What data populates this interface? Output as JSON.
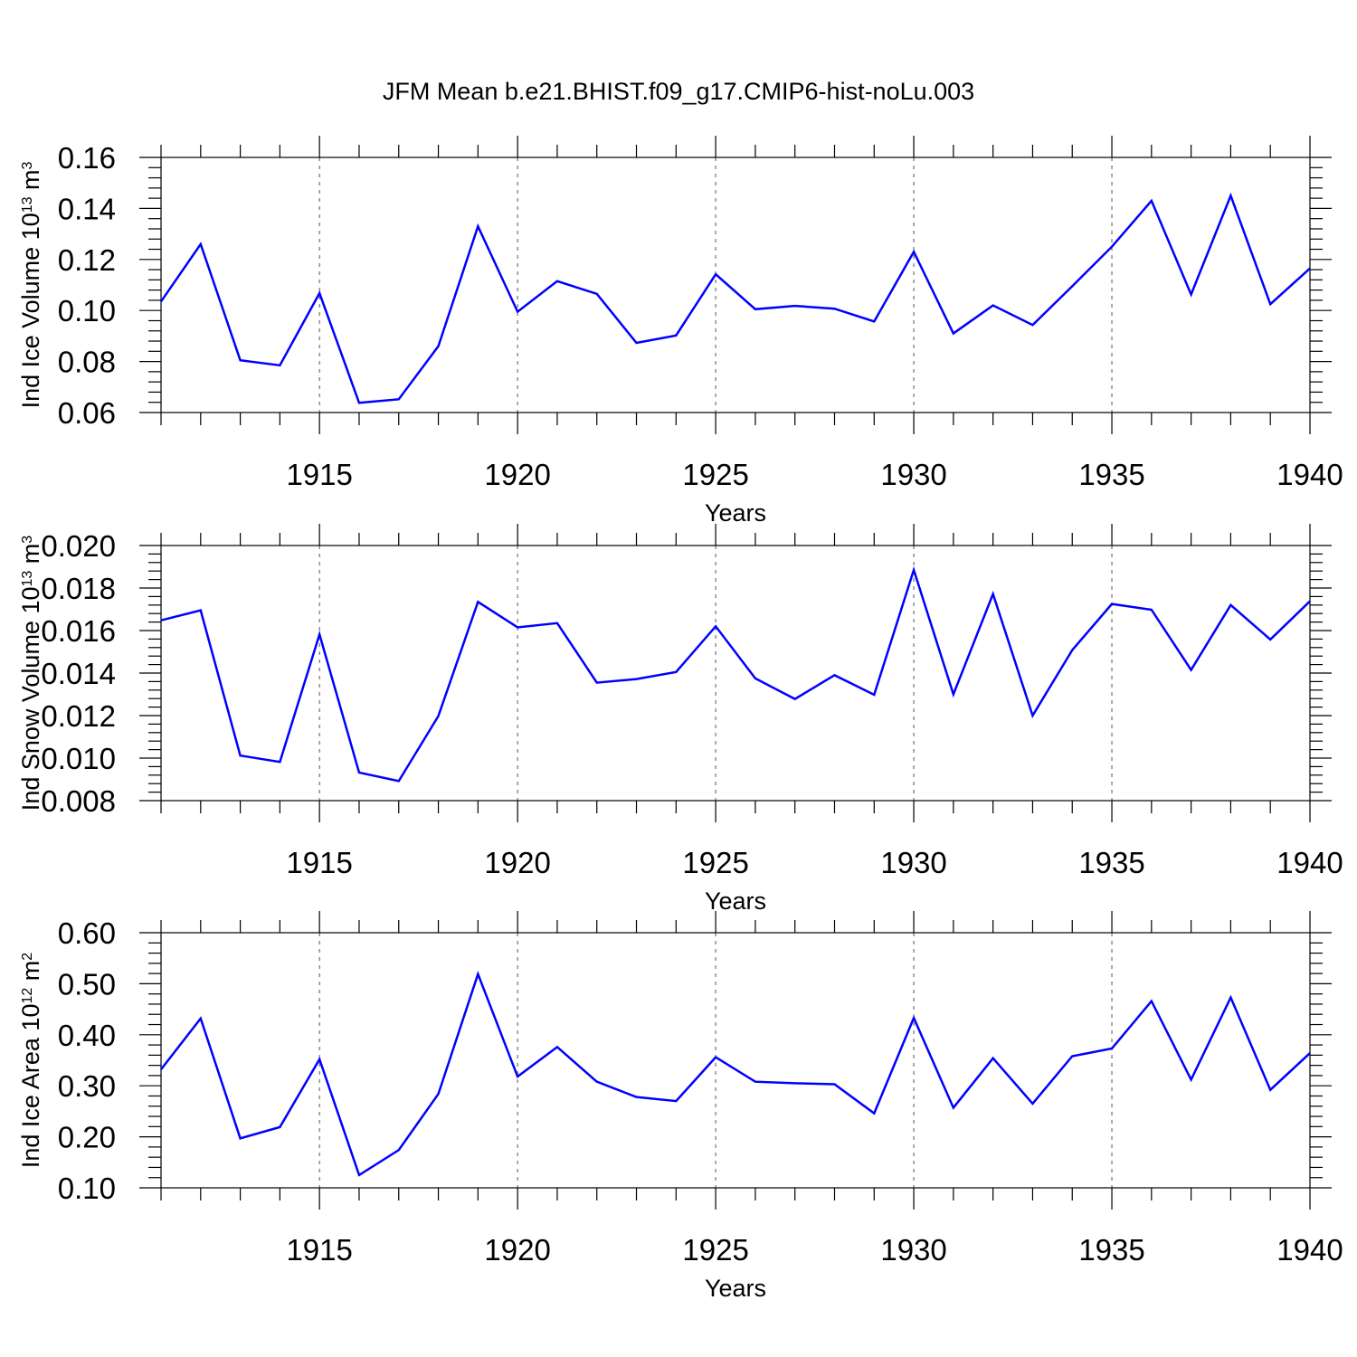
{
  "title": "JFM Mean b.e21.BHIST.f09_g17.CMIP6-hist-noLu.003",
  "colors": {
    "line": "#0000ff",
    "axis": "#000000",
    "grid": "#555555"
  },
  "chart_data": [
    {
      "type": "line",
      "ylabel": "Ind Ice Volume 10",
      "ylabel_exp": "13",
      "ylabel_unit": " m",
      "ylabel_unit_exp": "3",
      "xlabel": "Years",
      "xlim": [
        1911,
        1940
      ],
      "ylim": [
        0.06,
        0.16
      ],
      "yticks": [
        0.06,
        0.08,
        0.1,
        0.12,
        0.14,
        0.16
      ],
      "ytick_labels": [
        "0.06",
        "0.08",
        "0.10",
        "0.12",
        "0.14",
        "0.16"
      ],
      "xticks": [
        1915,
        1920,
        1925,
        1930,
        1935,
        1940
      ],
      "xtick_labels": [
        "1915",
        "1920",
        "1925",
        "1930",
        "1935",
        "1940"
      ],
      "grid_x": true,
      "x": [
        1911,
        1912,
        1913,
        1914,
        1915,
        1916,
        1917,
        1918,
        1919,
        1920,
        1921,
        1922,
        1923,
        1924,
        1925,
        1926,
        1927,
        1928,
        1929,
        1930,
        1931,
        1932,
        1933,
        1934,
        1935,
        1936,
        1937,
        1938,
        1939,
        1940
      ],
      "y": [
        0.1035,
        0.126,
        0.0805,
        0.0785,
        0.1068,
        0.0638,
        0.0652,
        0.086,
        0.133,
        0.0995,
        0.1115,
        0.1065,
        0.0873,
        0.0902,
        0.1142,
        0.1005,
        0.1018,
        0.1007,
        0.0957,
        0.123,
        0.091,
        0.102,
        0.0943,
        0.1095,
        0.125,
        0.143,
        0.1063,
        0.145,
        0.1025,
        0.1165
      ]
    },
    {
      "type": "line",
      "ylabel": "Ind Snow Volume 10",
      "ylabel_exp": "13",
      "ylabel_unit": " m",
      "ylabel_unit_exp": "3",
      "xlabel": "Years",
      "xlim": [
        1911,
        1940
      ],
      "ylim": [
        0.008,
        0.02
      ],
      "yticks": [
        0.008,
        0.01,
        0.012,
        0.014,
        0.016,
        0.018,
        0.02
      ],
      "ytick_labels": [
        "0.008",
        "0.010",
        "0.012",
        "0.014",
        "0.016",
        "0.018",
        "0.020"
      ],
      "xticks": [
        1915,
        1920,
        1925,
        1930,
        1935,
        1940
      ],
      "xtick_labels": [
        "1915",
        "1920",
        "1925",
        "1930",
        "1935",
        "1940"
      ],
      "grid_x": true,
      "x": [
        1911,
        1912,
        1913,
        1914,
        1915,
        1916,
        1917,
        1918,
        1919,
        1920,
        1921,
        1922,
        1923,
        1924,
        1925,
        1926,
        1927,
        1928,
        1929,
        1930,
        1931,
        1932,
        1933,
        1934,
        1935,
        1936,
        1937,
        1938,
        1939,
        1940
      ],
      "y": [
        0.01648,
        0.01695,
        0.01012,
        0.00982,
        0.01582,
        0.00932,
        0.00892,
        0.01198,
        0.01735,
        0.01615,
        0.01635,
        0.01355,
        0.01372,
        0.01405,
        0.0162,
        0.01375,
        0.01278,
        0.0139,
        0.01298,
        0.01885,
        0.013,
        0.01772,
        0.012,
        0.01508,
        0.01725,
        0.01698,
        0.01415,
        0.0172,
        0.01558,
        0.01738
      ]
    },
    {
      "type": "line",
      "ylabel": "Ind Ice Area 10",
      "ylabel_exp": "12",
      "ylabel_unit": " m",
      "ylabel_unit_exp": "2",
      "xlabel": "Years",
      "xlim": [
        1911,
        1940
      ],
      "ylim": [
        0.1,
        0.6
      ],
      "yticks": [
        0.1,
        0.2,
        0.3,
        0.4,
        0.5,
        0.6
      ],
      "ytick_labels": [
        "0.10",
        "0.20",
        "0.30",
        "0.40",
        "0.50",
        "0.60"
      ],
      "xticks": [
        1915,
        1920,
        1925,
        1930,
        1935,
        1940
      ],
      "xtick_labels": [
        "1915",
        "1920",
        "1925",
        "1930",
        "1935",
        "1940"
      ],
      "grid_x": true,
      "x": [
        1911,
        1912,
        1913,
        1914,
        1915,
        1916,
        1917,
        1918,
        1919,
        1920,
        1921,
        1922,
        1923,
        1924,
        1925,
        1926,
        1927,
        1928,
        1929,
        1930,
        1931,
        1932,
        1933,
        1934,
        1935,
        1936,
        1937,
        1938,
        1939,
        1940
      ],
      "y": [
        0.332,
        0.432,
        0.197,
        0.219,
        0.352,
        0.125,
        0.174,
        0.284,
        0.519,
        0.318,
        0.376,
        0.308,
        0.278,
        0.27,
        0.356,
        0.308,
        0.305,
        0.303,
        0.246,
        0.433,
        0.257,
        0.354,
        0.265,
        0.358,
        0.373,
        0.466,
        0.312,
        0.473,
        0.292,
        0.364
      ]
    }
  ]
}
